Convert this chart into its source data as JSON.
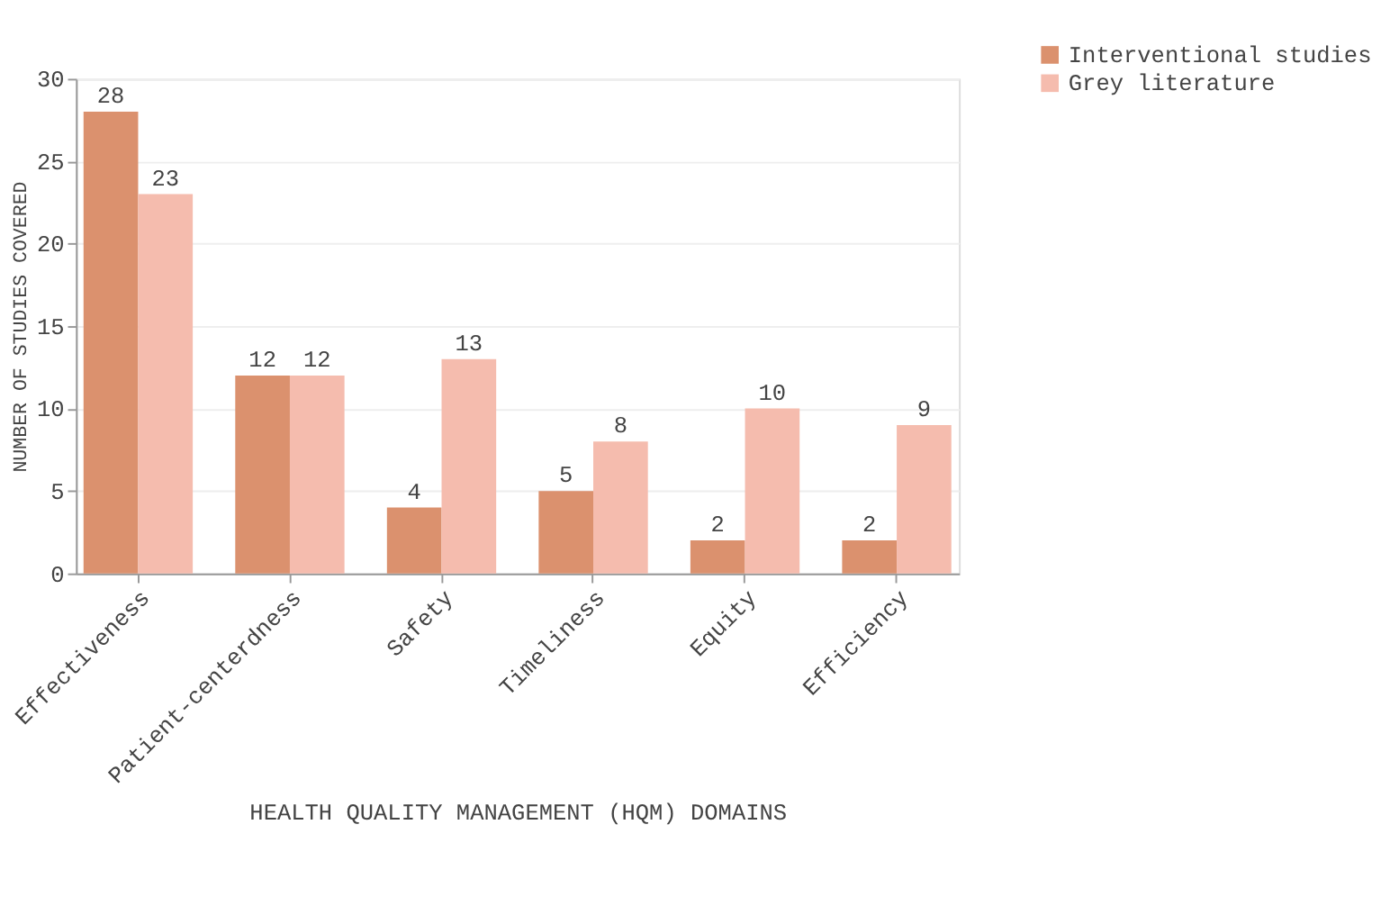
{
  "chart_data": {
    "type": "bar",
    "xlabel": "HEALTH QUALITY MANAGEMENT (HQM) DOMAINS",
    "ylabel": "NUMBER OF STUDIES COVERED",
    "categories": [
      "Effectiveness",
      "Patient-centerdness",
      "Safety",
      "Timeliness",
      "Equity",
      "Efficiency"
    ],
    "series": [
      {
        "name": "Interventional studies",
        "color": "#db916e",
        "values": [
          28,
          12,
          4,
          5,
          2,
          2
        ]
      },
      {
        "name": "Grey literature",
        "color": "#f5bcae",
        "values": [
          23,
          12,
          13,
          8,
          10,
          9
        ]
      }
    ],
    "ylim": [
      0,
      30
    ],
    "yticks": [
      0,
      5,
      10,
      15,
      20,
      25,
      30
    ],
    "grid": "y",
    "legend": "top right",
    "data_labels": true
  }
}
